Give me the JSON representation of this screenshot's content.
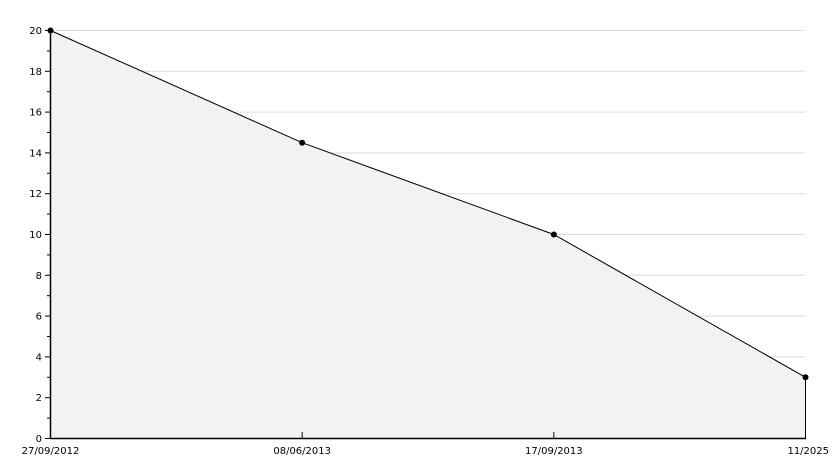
{
  "chart_data": {
    "type": "area",
    "title": "",
    "xlabel": "",
    "ylabel": "",
    "categories": [
      "27/09/2012",
      "08/06/2013",
      "17/09/2013",
      "11/2025"
    ],
    "values": [
      20,
      14.5,
      10,
      3
    ],
    "ylim": [
      0,
      20
    ],
    "y_ticks": [
      0,
      2,
      4,
      6,
      8,
      10,
      12,
      14,
      16,
      18,
      20
    ],
    "grid": true,
    "legend": "none",
    "colors": {
      "line": "#000000",
      "fill": "#f2f2f2",
      "grid": "#dcdcdc",
      "marker": "#000000"
    }
  }
}
